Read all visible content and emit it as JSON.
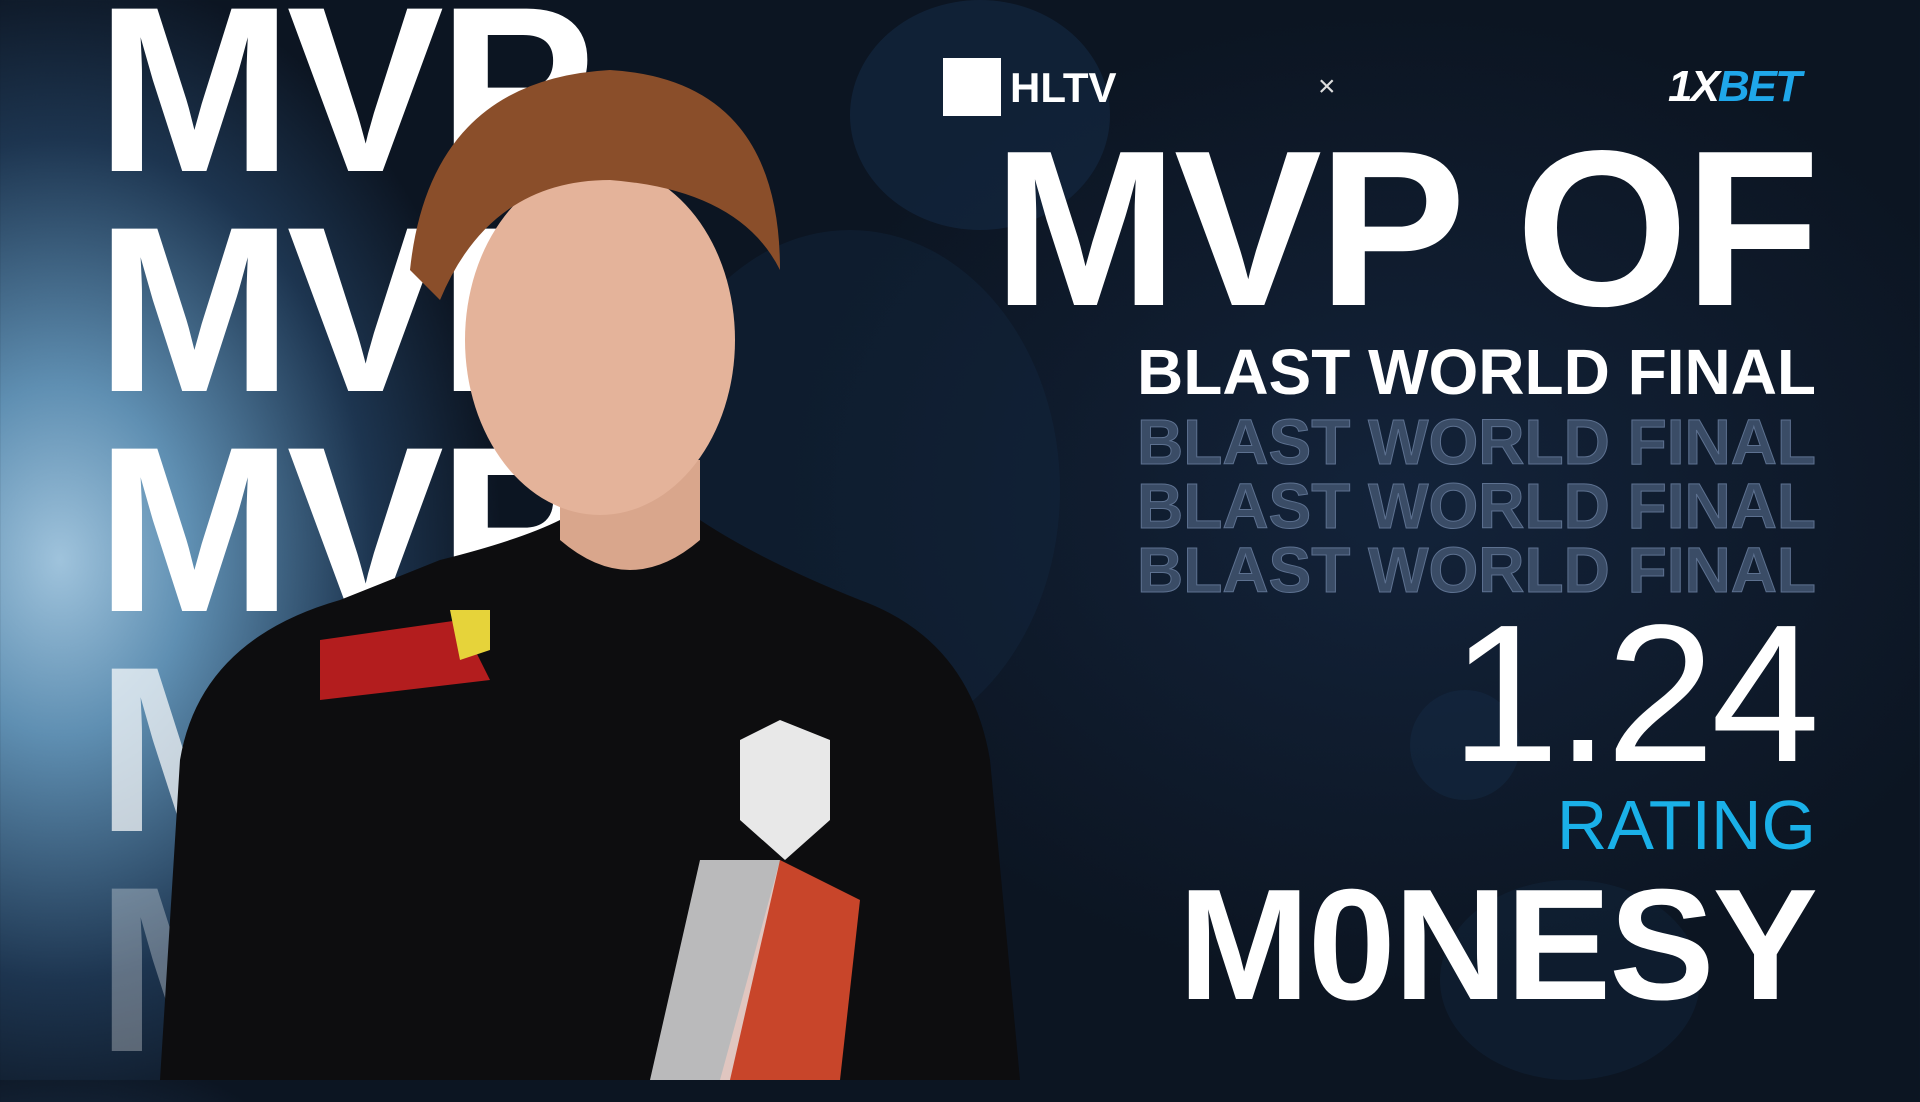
{
  "background_words": [
    "MVP",
    "MVP",
    "MVP",
    "MVP",
    "MVP"
  ],
  "header": {
    "logo_left": "HLTV",
    "separator": "×",
    "sponsor_part1": "1X",
    "sponsor_part2": "BET"
  },
  "headline": "MVP OF",
  "event": "BLAST WORLD FINAL",
  "event_echo": [
    "BLAST WORLD FINAL",
    "BLAST WORLD FINAL",
    "BLAST WORLD FINAL"
  ],
  "stat": {
    "value": "1.24",
    "label": "RATING"
  },
  "player_name": "M0NESY",
  "colors": {
    "background": "#0b121c",
    "accent": "#1ab0e8",
    "sponsor_accent": "#1fa7ea"
  }
}
